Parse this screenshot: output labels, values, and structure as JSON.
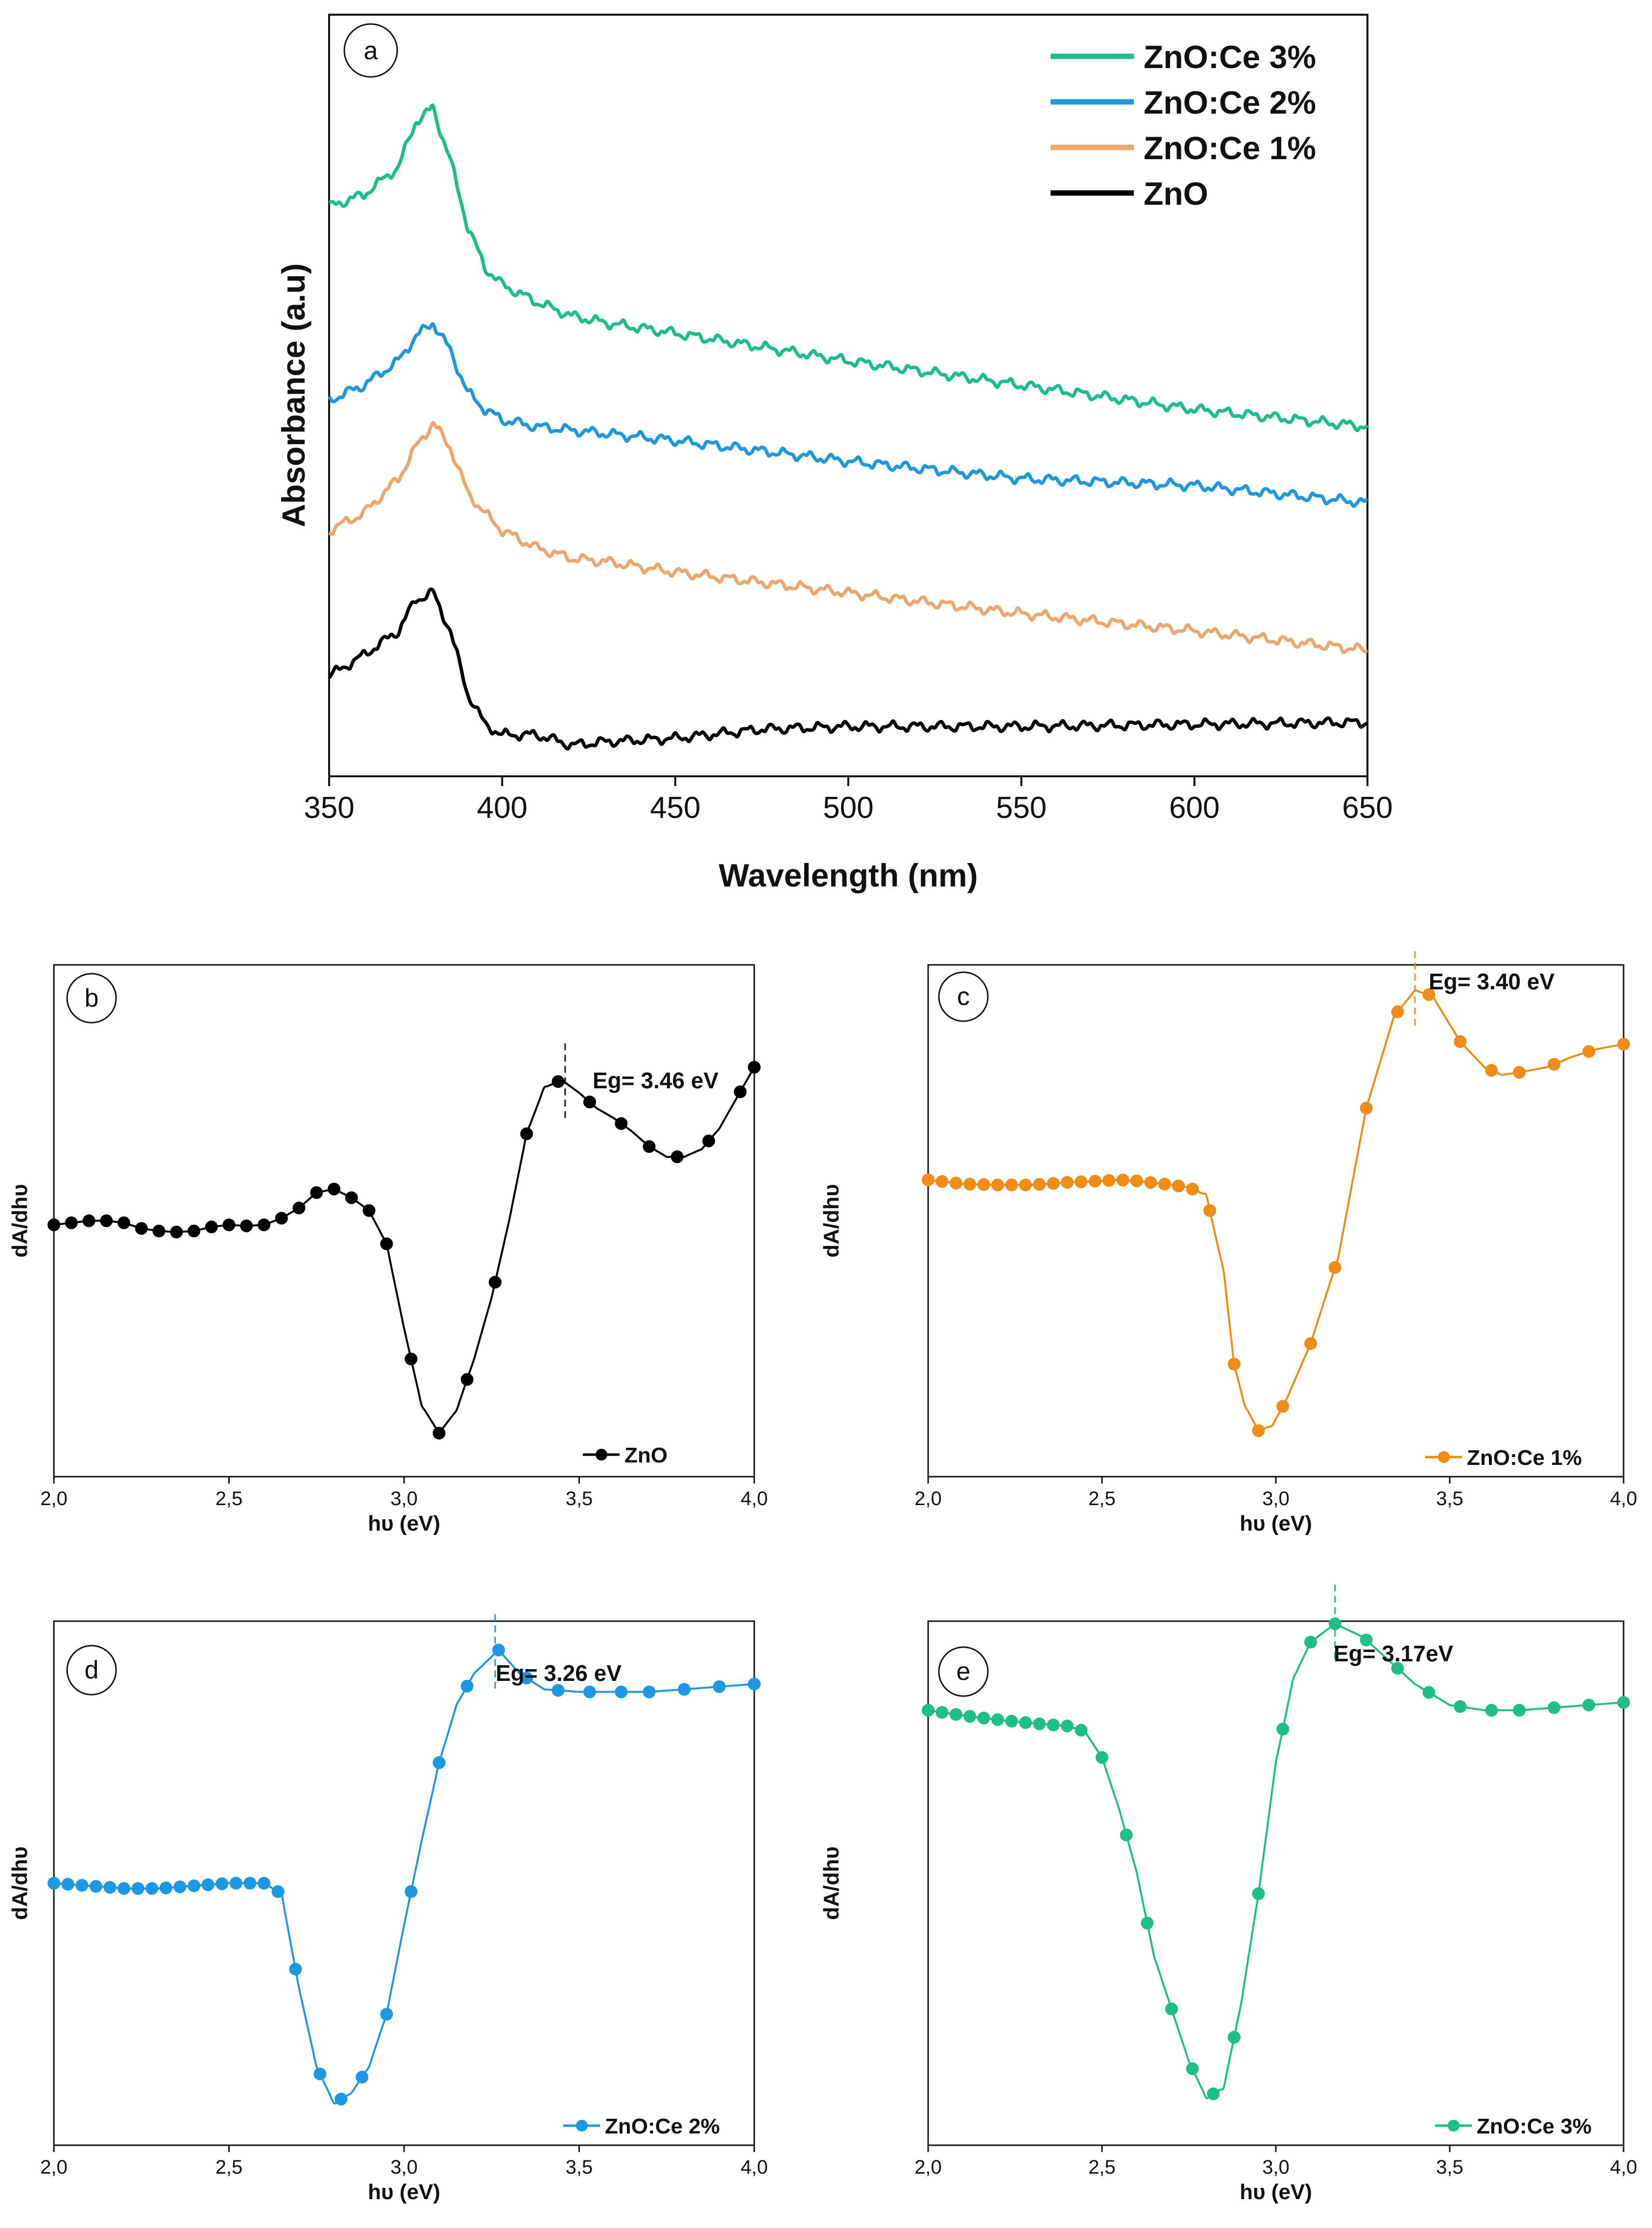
{
  "chart_data": [
    {
      "panel_label": "a",
      "type": "line",
      "xlabel": "Wavelength (nm)",
      "ylabel": "Absorbance (a.u)",
      "xlim": [
        350,
        650
      ],
      "xticks": [
        "350",
        "400",
        "450",
        "500",
        "550",
        "600",
        "650"
      ],
      "ylim": [
        0,
        1.1
      ],
      "x": [
        350,
        360,
        370,
        375,
        380,
        385,
        390,
        395,
        400,
        410,
        420,
        430,
        450,
        475,
        500,
        550,
        600,
        650
      ],
      "series": [
        {
          "name": "ZnO:Ce 3%",
          "color": "#1cbd8a",
          "values": [
            0.823,
            0.84,
            0.88,
            0.945,
            0.965,
            0.89,
            0.795,
            0.735,
            0.71,
            0.685,
            0.665,
            0.655,
            0.64,
            0.62,
            0.6,
            0.565,
            0.53,
            0.505
          ]
        },
        {
          "name": "ZnO:Ce 2%",
          "color": "#1f97db",
          "values": [
            0.543,
            0.565,
            0.6,
            0.635,
            0.655,
            0.615,
            0.555,
            0.53,
            0.515,
            0.505,
            0.5,
            0.495,
            0.485,
            0.47,
            0.455,
            0.43,
            0.42,
            0.395
          ]
        },
        {
          "name": "ZnO:Ce 1%",
          "color": "#eda66e",
          "values": [
            0.355,
            0.38,
            0.43,
            0.475,
            0.51,
            0.475,
            0.41,
            0.38,
            0.355,
            0.33,
            0.315,
            0.31,
            0.295,
            0.28,
            0.265,
            0.235,
            0.21,
            0.182
          ]
        },
        {
          "name": "ZnO",
          "color": "#000000",
          "values": [
            0.145,
            0.175,
            0.21,
            0.255,
            0.265,
            0.21,
            0.12,
            0.075,
            0.06,
            0.06,
            0.045,
            0.05,
            0.055,
            0.068,
            0.072,
            0.072,
            0.075,
            0.078
          ]
        }
      ]
    },
    {
      "panel_label": "b",
      "type": "line",
      "xlabel": "hυ (eV)",
      "ylabel": "dA/dhυ",
      "xlim": [
        2.0,
        4.0
      ],
      "xticks": [
        "2,0",
        "2,5",
        "3,0",
        "3,5",
        "4,0"
      ],
      "ylim": [
        0,
        1
      ],
      "series": [
        {
          "name": "ZnO",
          "color": "#000000",
          "x": [
            2.0,
            2.05,
            2.1,
            2.15,
            2.2,
            2.25,
            2.3,
            2.35,
            2.4,
            2.45,
            2.5,
            2.55,
            2.6,
            2.65,
            2.7,
            2.75,
            2.8,
            2.85,
            2.9,
            2.95,
            3.0,
            3.05,
            3.1,
            3.15,
            3.2,
            3.25,
            3.3,
            3.35,
            3.4,
            3.45,
            3.5,
            3.55,
            3.6,
            3.65,
            3.7,
            3.75,
            3.8,
            3.85,
            3.9,
            3.95,
            4.0
          ],
          "values": [
            0.492,
            0.496,
            0.5,
            0.5,
            0.496,
            0.485,
            0.48,
            0.478,
            0.48,
            0.488,
            0.492,
            0.49,
            0.492,
            0.505,
            0.525,
            0.555,
            0.562,
            0.545,
            0.52,
            0.455,
            0.29,
            0.14,
            0.085,
            0.13,
            0.23,
            0.35,
            0.5,
            0.67,
            0.76,
            0.775,
            0.75,
            0.72,
            0.7,
            0.675,
            0.645,
            0.625,
            0.625,
            0.64,
            0.68,
            0.74,
            0.8
          ],
          "markers_x": [
            2.0,
            2.05,
            2.1,
            2.15,
            2.2,
            2.25,
            2.3,
            2.35,
            2.4,
            2.45,
            2.5,
            2.55,
            2.6,
            2.65,
            2.7,
            2.75,
            2.8,
            2.85,
            2.9,
            2.95,
            3.02,
            3.1,
            3.18,
            3.26,
            3.35,
            3.44,
            3.53,
            3.62,
            3.7,
            3.78,
            3.87,
            3.96,
            4.0
          ]
        }
      ],
      "annotation": {
        "label": "Eg= 3.46 eV",
        "x": 3.46
      }
    },
    {
      "panel_label": "c",
      "type": "line",
      "xlabel": "hυ (eV)",
      "ylabel": "dA/dhυ",
      "xlim": [
        2.0,
        4.0
      ],
      "xticks": [
        "2,0",
        "2,5",
        "3,0",
        "3,5",
        "4,0"
      ],
      "ylim": [
        0,
        1
      ],
      "series": [
        {
          "name": "ZnO:Ce 1%",
          "color": "#ef8b16",
          "x": [
            2.0,
            2.1,
            2.2,
            2.3,
            2.4,
            2.5,
            2.55,
            2.6,
            2.7,
            2.75,
            2.8,
            2.85,
            2.88,
            2.91,
            2.95,
            2.99,
            3.03,
            3.1,
            3.18,
            3.26,
            3.34,
            3.4,
            3.45,
            3.53,
            3.6,
            3.65,
            3.7,
            3.78,
            3.85,
            3.92,
            4.0
          ],
          "values": [
            0.58,
            0.572,
            0.57,
            0.57,
            0.575,
            0.578,
            0.58,
            0.578,
            0.57,
            0.565,
            0.55,
            0.4,
            0.22,
            0.14,
            0.09,
            0.1,
            0.15,
            0.26,
            0.43,
            0.72,
            0.9,
            0.95,
            0.94,
            0.85,
            0.8,
            0.785,
            0.79,
            0.8,
            0.82,
            0.835,
            0.845
          ],
          "markers_x": [
            2.0,
            2.04,
            2.08,
            2.12,
            2.16,
            2.2,
            2.24,
            2.28,
            2.32,
            2.36,
            2.4,
            2.44,
            2.48,
            2.52,
            2.56,
            2.6,
            2.64,
            2.68,
            2.72,
            2.76,
            2.81,
            2.88,
            2.95,
            3.02,
            3.1,
            3.17,
            3.26,
            3.35,
            3.44,
            3.53,
            3.62,
            3.7,
            3.8,
            3.9,
            4.0
          ]
        }
      ],
      "annotation": {
        "label": "Eg= 3.40 eV",
        "x": 3.4
      }
    },
    {
      "panel_label": "d",
      "type": "line",
      "xlabel": "hυ (eV)",
      "ylabel": "dA/dhυ",
      "xlim": [
        2.0,
        4.0
      ],
      "xticks": [
        "2,0",
        "2,5",
        "3,0",
        "3,5",
        "4,0"
      ],
      "ylim": [
        0,
        1
      ],
      "series": [
        {
          "name": "ZnO:Ce 2%",
          "color": "#1e97e3",
          "x": [
            2.0,
            2.1,
            2.2,
            2.3,
            2.4,
            2.5,
            2.6,
            2.65,
            2.7,
            2.75,
            2.8,
            2.85,
            2.9,
            2.95,
            3.0,
            3.05,
            3.1,
            3.15,
            3.2,
            3.27,
            3.33,
            3.4,
            3.5,
            3.6,
            3.7,
            3.8,
            3.9,
            4.0
          ],
          "values": [
            0.5,
            0.495,
            0.49,
            0.49,
            0.495,
            0.5,
            0.5,
            0.48,
            0.3,
            0.15,
            0.08,
            0.1,
            0.15,
            0.25,
            0.42,
            0.58,
            0.73,
            0.84,
            0.9,
            0.945,
            0.9,
            0.87,
            0.865,
            0.865,
            0.865,
            0.87,
            0.875,
            0.88
          ],
          "markers_x": [
            2.0,
            2.04,
            2.08,
            2.12,
            2.16,
            2.2,
            2.24,
            2.28,
            2.32,
            2.36,
            2.4,
            2.44,
            2.48,
            2.52,
            2.56,
            2.6,
            2.64,
            2.69,
            2.76,
            2.82,
            2.88,
            2.95,
            3.02,
            3.1,
            3.18,
            3.27,
            3.35,
            3.44,
            3.53,
            3.62,
            3.7,
            3.8,
            3.9,
            4.0
          ]
        }
      ],
      "annotation": {
        "label": "Eg= 3.26 eV",
        "x": 3.26
      }
    },
    {
      "panel_label": "e",
      "type": "line",
      "xlabel": "hυ (eV)",
      "ylabel": "dA/dhυ",
      "xlim": [
        2.0,
        4.0
      ],
      "xticks": [
        "2,0",
        "2,5",
        "3,0",
        "3,5",
        "4,0"
      ],
      "ylim": [
        0,
        1
      ],
      "series": [
        {
          "name": "ZnO:Ce 3%",
          "color": "#1fbd87",
          "x": [
            2.0,
            2.1,
            2.2,
            2.3,
            2.4,
            2.45,
            2.5,
            2.55,
            2.6,
            2.65,
            2.7,
            2.75,
            2.8,
            2.85,
            2.9,
            2.95,
            3.0,
            3.05,
            3.1,
            3.17,
            3.25,
            3.3,
            3.4,
            3.5,
            3.6,
            3.7,
            3.8,
            3.9,
            4.0
          ],
          "values": [
            0.83,
            0.82,
            0.812,
            0.805,
            0.8,
            0.79,
            0.74,
            0.64,
            0.52,
            0.36,
            0.26,
            0.16,
            0.09,
            0.11,
            0.27,
            0.48,
            0.73,
            0.89,
            0.96,
            0.995,
            0.97,
            0.94,
            0.88,
            0.84,
            0.83,
            0.83,
            0.835,
            0.84,
            0.845
          ],
          "markers_x": [
            2.0,
            2.04,
            2.08,
            2.12,
            2.16,
            2.2,
            2.24,
            2.28,
            2.32,
            2.36,
            2.4,
            2.44,
            2.5,
            2.57,
            2.63,
            2.7,
            2.76,
            2.82,
            2.88,
            2.95,
            3.02,
            3.1,
            3.17,
            3.26,
            3.35,
            3.44,
            3.53,
            3.62,
            3.7,
            3.8,
            3.9,
            4.0
          ]
        }
      ],
      "annotation": {
        "label": "Eg= 3.17eV",
        "x": 3.17
      }
    }
  ]
}
